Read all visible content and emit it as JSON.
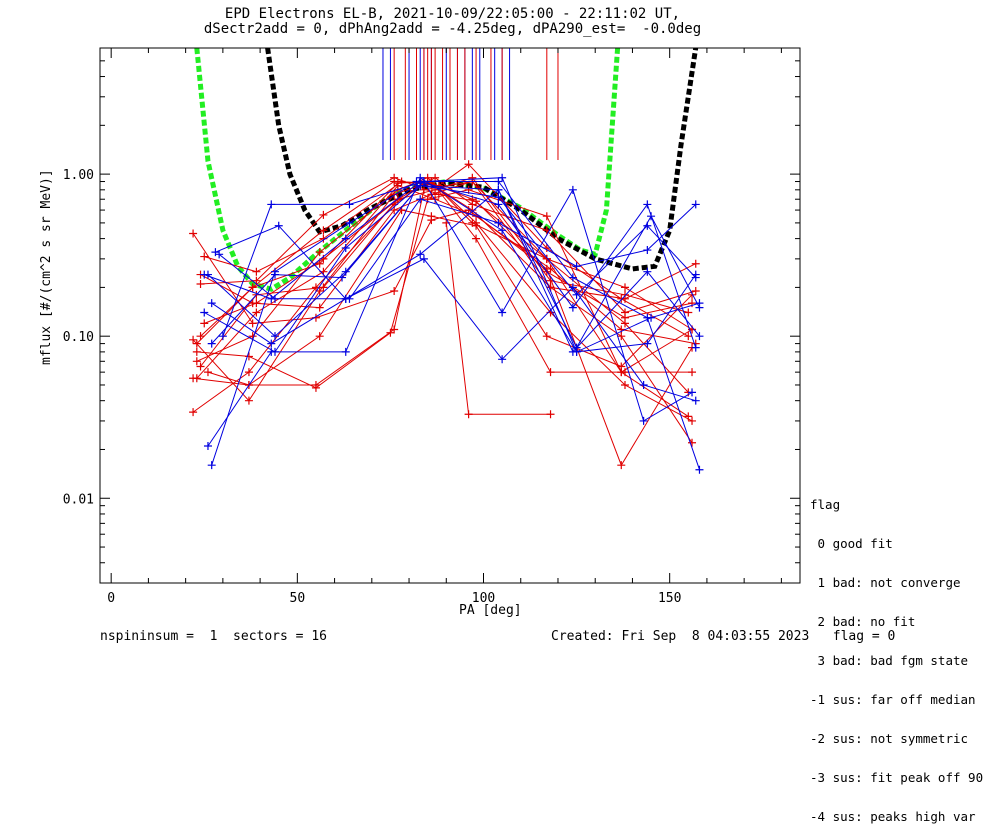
{
  "header": {
    "title_line1": "EPD Electrons EL-B, 2021-10-09/22:05:00 - 22:11:02 UT,",
    "title_line2": "dSectr2add = 0, dPhAng2add = -4.25deg, dPA290_est=  -0.0deg"
  },
  "footer": {
    "left": "nspininsum =  1  sectors = 16",
    "right": "Created: Fri Sep  8 04:03:55 2023   flag = 0"
  },
  "legend": {
    "title": "flag",
    "items": [
      " 0 good fit",
      " 1 bad: not converge",
      " 2 bad: no fit",
      " 3 bad: bad fgm state",
      "-1 sus: far off median",
      "-2 sus: not symmetric",
      "-3 sus: fit peak off 90",
      "-4 sus: peaks high var"
    ]
  },
  "colors": {
    "red_series": "#e00000",
    "blue_series": "#0000e0",
    "fit_green": "#22ee22",
    "fit_black": "#000000",
    "axes": "#000000"
  },
  "chart_data": {
    "type": "line",
    "xlabel": "PA [deg]",
    "ylabel": "mflux [#/(cm^2 s sr MeV)]",
    "xlim": [
      -3,
      185
    ],
    "ylim": [
      0.003,
      6
    ],
    "y_scale": "log",
    "x_ticks": [
      0,
      50,
      100,
      150
    ],
    "x_tick_labels": [
      "0",
      "50",
      "100",
      "150"
    ],
    "y_ticks": [
      0.01,
      0.1,
      1
    ],
    "y_tick_labels": [
      "0.01",
      "0.10",
      "1.00"
    ],
    "grid": false,
    "series": [
      {
        "color": "red",
        "x": [
          22,
          37,
          55,
          76,
          84,
          97,
          117,
          137,
          155
        ],
        "y": [
          0.055,
          0.05,
          0.05,
          0.11,
          0.8,
          0.9,
          0.3,
          0.06,
          0.032
        ]
      },
      {
        "color": "red",
        "x": [
          22,
          37,
          55,
          76,
          85,
          97,
          118,
          137,
          156
        ],
        "y": [
          0.034,
          0.06,
          0.2,
          0.65,
          0.9,
          0.6,
          0.2,
          0.1,
          0.022
        ]
      },
      {
        "color": "red",
        "x": [
          23,
          38,
          56,
          77,
          85,
          98,
          118,
          138,
          156
        ],
        "y": [
          0.07,
          0.1,
          0.33,
          0.8,
          0.95,
          0.5,
          0.14,
          0.05,
          0.03
        ]
      },
      {
        "color": "red",
        "x": [
          23,
          38,
          56,
          77,
          86,
          98,
          118,
          138,
          156
        ],
        "y": [
          0.09,
          0.2,
          0.28,
          0.88,
          0.9,
          0.4,
          0.06,
          0.06,
          0.06
        ]
      },
      {
        "color": "red",
        "x": [
          24,
          38,
          57,
          76,
          86,
          97,
          117,
          138,
          156
        ],
        "y": [
          0.1,
          0.2,
          0.45,
          0.9,
          0.88,
          0.7,
          0.3,
          0.2,
          0.11
        ]
      },
      {
        "color": "red",
        "x": [
          24,
          39,
          57,
          77,
          87,
          97,
          117,
          138,
          157
        ],
        "y": [
          0.065,
          0.18,
          0.2,
          0.7,
          0.95,
          0.65,
          0.45,
          0.14,
          0.19
        ]
      },
      {
        "color": "red",
        "x": [
          25,
          39,
          57,
          78,
          88,
          96,
          117,
          137,
          155
        ],
        "y": [
          0.31,
          0.25,
          0.4,
          0.9,
          0.85,
          1.15,
          0.35,
          0.17,
          0.1
        ]
      },
      {
        "color": "red",
        "x": [
          22,
          38,
          55,
          76,
          86,
          96,
          117,
          137,
          156
        ],
        "y": [
          0.43,
          0.12,
          0.13,
          0.19,
          0.52,
          0.6,
          0.26,
          0.016,
          0.085
        ]
      },
      {
        "color": "red",
        "x": [
          24,
          38,
          56,
          76,
          86,
          97,
          118,
          138,
          157
        ],
        "y": [
          0.24,
          0.16,
          0.15,
          0.6,
          0.75,
          0.9,
          0.2,
          0.17,
          0.28
        ]
      },
      {
        "color": "red",
        "x": [
          23,
          37,
          55,
          75,
          85,
          96,
          117,
          137,
          156
        ],
        "y": [
          0.08,
          0.075,
          0.048,
          0.105,
          0.7,
          0.8,
          0.55,
          0.06,
          0.11
        ]
      },
      {
        "color": "red",
        "x": [
          25,
          39,
          57,
          77,
          87,
          97,
          118,
          138,
          155
        ],
        "y": [
          0.12,
          0.16,
          0.3,
          0.7,
          0.8,
          0.95,
          0.22,
          0.18,
          0.14
        ]
      },
      {
        "color": "red",
        "x": [
          26,
          37,
          56,
          78,
          86,
          98,
          117,
          137,
          156
        ],
        "y": [
          0.06,
          0.05,
          0.1,
          0.6,
          0.55,
          0.48,
          0.1,
          0.065,
          0.18
        ]
      },
      {
        "color": "red",
        "x": [
          90,
          96,
          118
        ],
        "y": [
          0.5,
          0.033,
          0.033
        ]
      },
      {
        "color": "red",
        "x": [
          24,
          39,
          57,
          76,
          88,
          98,
          117,
          138,
          156
        ],
        "y": [
          0.21,
          0.22,
          0.56,
          0.95,
          0.75,
          0.68,
          0.25,
          0.13,
          0.16
        ]
      },
      {
        "color": "red",
        "x": [
          22,
          37,
          56,
          76,
          86,
          97,
          117,
          138,
          155
        ],
        "y": [
          0.095,
          0.04,
          0.19,
          0.75,
          0.9,
          0.5,
          0.3,
          0.12,
          0.045
        ]
      },
      {
        "color": "red",
        "x": [
          23,
          39,
          57,
          77,
          87,
          98,
          118,
          137,
          157
        ],
        "y": [
          0.055,
          0.14,
          0.25,
          0.85,
          0.7,
          0.55,
          0.26,
          0.11,
          0.09
        ]
      },
      {
        "color": "blue",
        "x": [
          26,
          43,
          63,
          83,
          105,
          125,
          145,
          158
        ],
        "y": [
          0.021,
          0.08,
          0.08,
          0.95,
          0.45,
          0.08,
          0.13,
          0.16
        ]
      },
      {
        "color": "blue",
        "x": [
          27,
          44,
          64,
          82,
          104,
          124,
          144,
          158
        ],
        "y": [
          0.016,
          0.25,
          0.5,
          0.9,
          0.9,
          0.23,
          0.13,
          0.015
        ]
      },
      {
        "color": "blue",
        "x": [
          27,
          43,
          63,
          84,
          105,
          124,
          143,
          157
        ],
        "y": [
          0.16,
          0.09,
          0.17,
          0.3,
          0.072,
          0.2,
          0.05,
          0.04
        ]
      },
      {
        "color": "blue",
        "x": [
          26,
          44,
          63,
          83,
          104,
          125,
          144,
          157
        ],
        "y": [
          0.24,
          0.1,
          0.25,
          0.85,
          0.72,
          0.18,
          0.48,
          0.23
        ]
      },
      {
        "color": "blue",
        "x": [
          28,
          45,
          63,
          83,
          104,
          125,
          145,
          158
        ],
        "y": [
          0.33,
          0.48,
          0.17,
          0.32,
          0.8,
          0.085,
          0.55,
          0.15
        ]
      },
      {
        "color": "blue",
        "x": [
          30,
          43,
          64,
          84,
          105,
          124,
          143,
          156
        ],
        "y": [
          0.1,
          0.65,
          0.65,
          0.9,
          0.14,
          0.8,
          0.03,
          0.045
        ]
      },
      {
        "color": "blue",
        "x": [
          25,
          44,
          63,
          84,
          105,
          125,
          144,
          157
        ],
        "y": [
          0.14,
          0.08,
          0.35,
          0.9,
          0.95,
          0.08,
          0.09,
          0.24
        ]
      },
      {
        "color": "blue",
        "x": [
          27,
          44,
          62,
          83,
          104,
          124,
          144,
          158
        ],
        "y": [
          0.09,
          0.24,
          0.23,
          0.85,
          0.8,
          0.08,
          0.25,
          0.1
        ]
      },
      {
        "color": "blue",
        "x": [
          25,
          43,
          63,
          83,
          104,
          124,
          144,
          157
        ],
        "y": [
          0.24,
          0.17,
          0.4,
          0.9,
          0.65,
          0.15,
          0.65,
          0.085
        ]
      },
      {
        "color": "blue",
        "x": [
          29,
          44,
          64,
          83,
          104,
          125,
          144,
          157
        ],
        "y": [
          0.32,
          0.17,
          0.17,
          0.7,
          0.5,
          0.27,
          0.34,
          0.65
        ]
      }
    ],
    "fit_curves": [
      {
        "color": "green",
        "style": "dashed",
        "x": [
          23,
          26,
          30,
          34,
          38,
          43,
          48,
          55,
          63,
          72,
          80,
          90,
          100,
          110,
          120,
          126,
          130,
          133,
          136
        ],
        "y": [
          6,
          1.2,
          0.45,
          0.27,
          0.21,
          0.195,
          0.23,
          0.32,
          0.45,
          0.66,
          0.82,
          0.9,
          0.82,
          0.62,
          0.42,
          0.34,
          0.32,
          0.6,
          6
        ]
      },
      {
        "color": "black",
        "style": "dashed",
        "x": [
          42,
          45,
          48,
          52,
          56,
          62,
          70,
          80,
          90,
          100,
          110,
          120,
          130,
          140,
          146,
          150,
          153,
          157
        ],
        "y": [
          6,
          2.0,
          1.0,
          0.6,
          0.44,
          0.48,
          0.62,
          0.8,
          0.88,
          0.83,
          0.6,
          0.4,
          0.3,
          0.26,
          0.27,
          0.45,
          1.5,
          6
        ]
      }
    ],
    "vertical_markers": [
      {
        "color": "blue",
        "x": [
          73,
          75,
          80,
          83,
          84,
          86,
          90,
          93,
          95,
          97,
          99,
          103,
          105,
          107
        ]
      },
      {
        "color": "red",
        "x": [
          76,
          79,
          82,
          84,
          85,
          86,
          87,
          89,
          91,
          93,
          95,
          98,
          102,
          105,
          117,
          120
        ]
      }
    ]
  }
}
